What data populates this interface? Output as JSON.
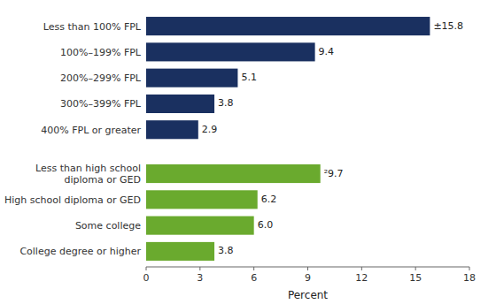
{
  "chart_data": {
    "type": "bar",
    "orientation": "horizontal",
    "categories": [
      "College degree or higher",
      "Some college",
      "High school diploma or GED",
      "Less than high school\ndiploma or GED",
      "400% FPL or greater",
      "300%–399% FPL",
      "200%–299% FPL",
      "100%–199% FPL",
      "Less than 100% FPL"
    ],
    "values": [
      3.8,
      6.0,
      6.2,
      9.7,
      2.9,
      3.8,
      5.1,
      9.4,
      15.8
    ],
    "value_labels": [
      "3.8",
      "6.0",
      "6.2",
      "²9.7",
      "2.9",
      "3.8",
      "5.1",
      "9.4",
      "±15.8"
    ],
    "colors": [
      "#6aaa2e",
      "#6aaa2e",
      "#6aaa2e",
      "#6aaa2e",
      "#1a3060",
      "#1a3060",
      "#1a3060",
      "#1a3060",
      "#1a3060"
    ],
    "data_labels": true,
    "grid": false,
    "xlabel": "Percent",
    "xlim": [
      0,
      18
    ],
    "xticks": [
      0,
      3,
      6,
      9,
      12,
      15,
      18
    ]
  }
}
